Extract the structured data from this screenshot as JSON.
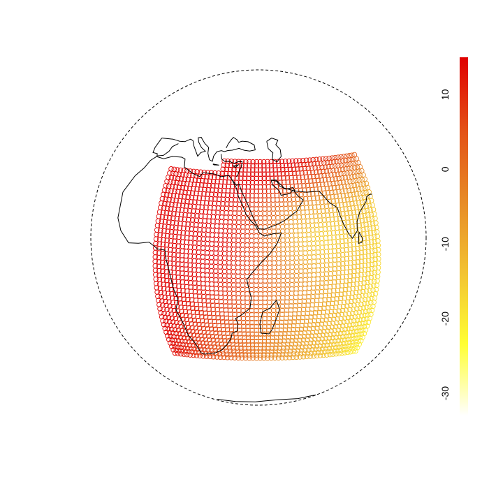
{
  "figure": {
    "type": "orthographic-globe-point-map",
    "projection": "orthographic",
    "center": {
      "lon": 43,
      "lat": 10
    },
    "graticule_boundary": "dashed",
    "marker": "open-circle"
  },
  "colorbar": {
    "ticks": [
      "10",
      "0",
      "-10",
      "-20",
      "-30"
    ],
    "tick_values": [
      10,
      0,
      -10,
      -20,
      -30
    ],
    "range": [
      -33,
      15
    ],
    "colors": [
      "#ffffff",
      "#ffff33",
      "#f2c232",
      "#e78a26",
      "#e35016",
      "#e00000"
    ],
    "orientation": "vertical"
  },
  "point_grid": {
    "lon_range": [
      5,
      90
    ],
    "lat_range": [
      -36,
      37
    ],
    "lon_step": 1.55,
    "lat_step": 1.55,
    "value_range": [
      -33,
      15
    ],
    "trend": "values decrease from west/north (high, red) toward south-east (low, white)"
  },
  "coastlines": {
    "color": "#000000",
    "note": "Simplified outlines of Africa, Europe, Middle East, India, Madagascar, Antarctica edge"
  }
}
